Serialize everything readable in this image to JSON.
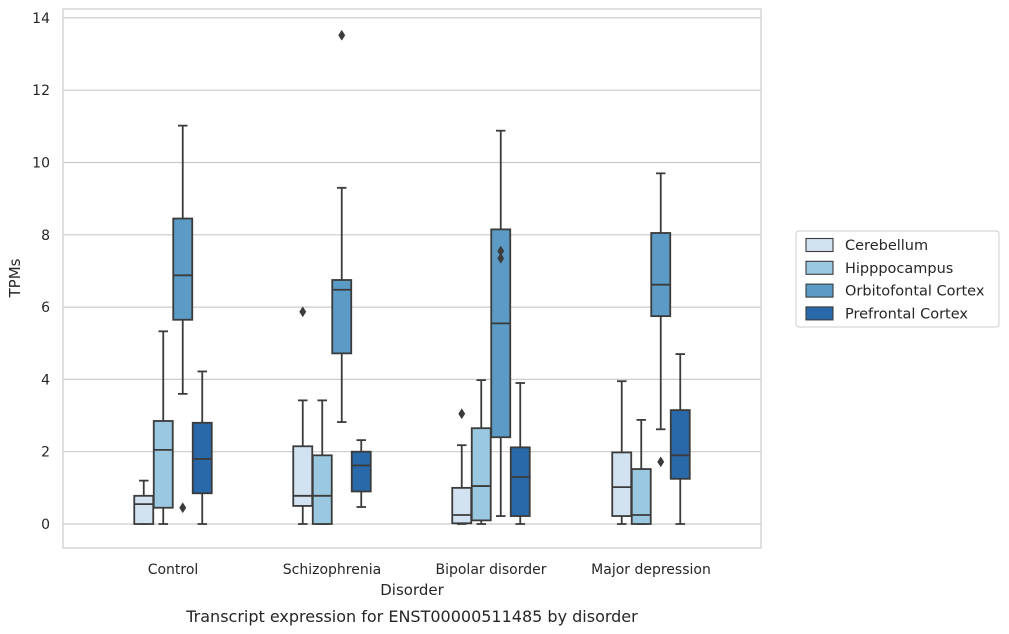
{
  "chart_data": {
    "type": "box",
    "caption": "Transcript expression for ENST00000511485 by disorder",
    "xlabel": "Disorder",
    "ylabel": "TPMs",
    "ylim": [
      -0.65,
      14.2
    ],
    "yticks": [
      0,
      2,
      4,
      6,
      8,
      10,
      12,
      14
    ],
    "grid": true,
    "legend_placement": "right",
    "categories": [
      "Control",
      "Schizophrenia",
      "Bipolar disorder",
      "Major depression"
    ],
    "series": [
      {
        "name": "Cerebellum",
        "color": "#d2e2f1",
        "boxes": [
          {
            "whisker_low": 0,
            "q1": 0,
            "median": 0.55,
            "q3": 0.78,
            "whisker_high": 1.2,
            "outliers": []
          },
          {
            "whisker_low": 0,
            "q1": 0.5,
            "median": 0.78,
            "q3": 2.15,
            "whisker_high": 3.42,
            "outliers": [
              5.87
            ]
          },
          {
            "whisker_low": 0,
            "q1": 0.02,
            "median": 0.25,
            "q3": 1.0,
            "whisker_high": 2.18,
            "outliers": [
              3.05
            ]
          },
          {
            "whisker_low": 0,
            "q1": 0.22,
            "median": 1.02,
            "q3": 1.98,
            "whisker_high": 3.95,
            "outliers": []
          }
        ]
      },
      {
        "name": "Hipppocampus",
        "color": "#9ac8e0",
        "boxes": [
          {
            "whisker_low": 0,
            "q1": 0.45,
            "median": 2.05,
            "q3": 2.85,
            "whisker_high": 5.33,
            "outliers": []
          },
          {
            "whisker_low": 0,
            "q1": 0,
            "median": 0.78,
            "q3": 1.9,
            "whisker_high": 3.42,
            "outliers": []
          },
          {
            "whisker_low": 0,
            "q1": 0.1,
            "median": 1.05,
            "q3": 2.65,
            "whisker_high": 3.98,
            "outliers": []
          },
          {
            "whisker_low": 0,
            "q1": 0,
            "median": 0.25,
            "q3": 1.52,
            "whisker_high": 2.88,
            "outliers": []
          }
        ]
      },
      {
        "name": "Orbitofontal Cortex",
        "color": "#5b9bc6",
        "boxes": [
          {
            "whisker_low": 3.6,
            "q1": 5.65,
            "median": 6.88,
            "q3": 8.45,
            "whisker_high": 11.02,
            "outliers": [
              0.45
            ]
          },
          {
            "whisker_low": 2.82,
            "q1": 4.72,
            "median": 6.48,
            "q3": 6.75,
            "whisker_high": 9.3,
            "outliers": [
              13.52
            ]
          },
          {
            "whisker_low": 0.22,
            "q1": 2.4,
            "median": 5.55,
            "q3": 8.15,
            "whisker_high": 10.88,
            "outliers": [
              7.55,
              7.35
            ]
          },
          {
            "whisker_low": 2.62,
            "q1": 5.75,
            "median": 6.62,
            "q3": 8.05,
            "whisker_high": 9.7,
            "outliers": [
              1.72
            ]
          }
        ]
      },
      {
        "name": "Prefrontal Cortex",
        "color": "#2969a9",
        "boxes": [
          {
            "whisker_low": 0,
            "q1": 0.85,
            "median": 1.8,
            "q3": 2.8,
            "whisker_high": 4.22,
            "outliers": []
          },
          {
            "whisker_low": 0.47,
            "q1": 0.9,
            "median": 1.62,
            "q3": 2.0,
            "whisker_high": 2.32,
            "outliers": []
          },
          {
            "whisker_low": 0,
            "q1": 0.22,
            "median": 1.3,
            "q3": 2.12,
            "whisker_high": 3.9,
            "outliers": []
          },
          {
            "whisker_low": 0,
            "q1": 1.25,
            "median": 1.9,
            "q3": 3.15,
            "whisker_high": 4.7,
            "outliers": []
          }
        ]
      }
    ]
  }
}
